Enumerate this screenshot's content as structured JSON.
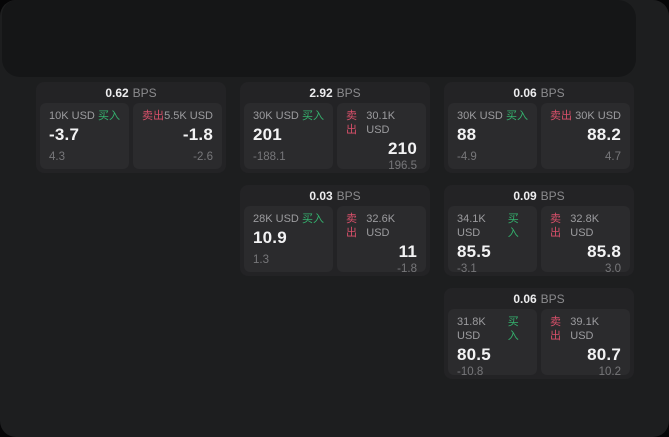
{
  "labels": {
    "buy": "买入",
    "sell": "卖出",
    "bps": "BPS"
  },
  "colors": {
    "background": "#1d1e1f",
    "top_panel": "#151617",
    "card": "#232325",
    "panel": "#2b2b2d",
    "buy_green": "#34b26e",
    "sell_red": "#d8506a"
  },
  "cards": [
    {
      "bps": "0.62",
      "buy": {
        "amount": "10K USD",
        "value": "-3.7",
        "sub": "4.3"
      },
      "sell": {
        "amount": "5.5K USD",
        "value": "-1.8",
        "sub": "-2.6"
      }
    },
    {
      "bps": "2.92",
      "buy": {
        "amount": "30K USD",
        "value": "201",
        "sub": "-188.1"
      },
      "sell": {
        "amount": "30.1K USD",
        "value": "210",
        "sub": "196.5"
      }
    },
    {
      "bps": "0.06",
      "buy": {
        "amount": "30K USD",
        "value": "88",
        "sub": "-4.9"
      },
      "sell": {
        "amount": "30K USD",
        "value": "88.2",
        "sub": "4.7"
      }
    },
    {
      "bps": "0.03",
      "buy": {
        "amount": "28K USD",
        "value": "10.9",
        "sub": "1.3"
      },
      "sell": {
        "amount": "32.6K USD",
        "value": "11",
        "sub": "-1.8"
      }
    },
    {
      "bps": "0.09",
      "buy": {
        "amount": "34.1K USD",
        "value": "85.5",
        "sub": "-3.1"
      },
      "sell": {
        "amount": "32.8K USD",
        "value": "85.8",
        "sub": "3.0"
      }
    },
    {
      "bps": "0.06",
      "buy": {
        "amount": "31.8K USD",
        "value": "80.5",
        "sub": "-10.8"
      },
      "sell": {
        "amount": "39.1K USD",
        "value": "80.7",
        "sub": "10.2"
      }
    }
  ]
}
